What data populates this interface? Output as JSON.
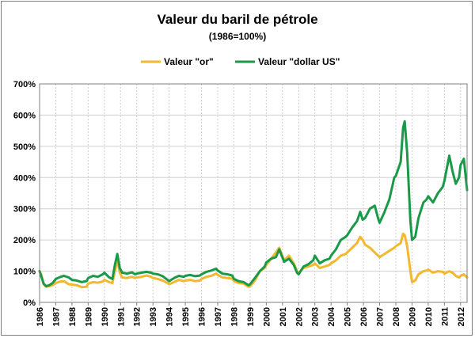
{
  "chart_data": {
    "type": "line",
    "title": "Valeur du baril de pétrole",
    "subtitle": "(1986=100%)",
    "xlabel": "",
    "ylabel": "",
    "xlim": [
      1986,
      2012.4
    ],
    "ylim": [
      0,
      700
    ],
    "y_unit": "%",
    "yticks": [
      "0%",
      "100%",
      "200%",
      "300%",
      "400%",
      "500%",
      "600%",
      "700%"
    ],
    "xticks": [
      "1986",
      "1987",
      "1988",
      "1989",
      "1990",
      "1991",
      "1992",
      "1993",
      "1994",
      "1995",
      "1996",
      "1997",
      "1998",
      "1999",
      "2000",
      "2001",
      "2002",
      "2003",
      "2004",
      "2005",
      "2006",
      "2007",
      "2008",
      "2009",
      "2010",
      "2011",
      "2012"
    ],
    "grid": true,
    "legend": "top",
    "series": [
      {
        "name": "Valeur \"or\"",
        "color": "#f2b92e",
        "points": [
          [
            1986.0,
            100
          ],
          [
            1986.1,
            90
          ],
          [
            1986.25,
            58
          ],
          [
            1986.4,
            50
          ],
          [
            1986.6,
            52
          ],
          [
            1986.8,
            55
          ],
          [
            1987.0,
            62
          ],
          [
            1987.3,
            67
          ],
          [
            1987.5,
            68
          ],
          [
            1987.8,
            58
          ],
          [
            1988.0,
            57
          ],
          [
            1988.3,
            55
          ],
          [
            1988.6,
            49
          ],
          [
            1988.9,
            50
          ],
          [
            1989.0,
            60
          ],
          [
            1989.3,
            65
          ],
          [
            1989.6,
            63
          ],
          [
            1989.9,
            67
          ],
          [
            1990.0,
            72
          ],
          [
            1990.3,
            65
          ],
          [
            1990.5,
            62
          ],
          [
            1990.65,
            100
          ],
          [
            1990.8,
            135
          ],
          [
            1990.95,
            95
          ],
          [
            1991.1,
            80
          ],
          [
            1991.4,
            78
          ],
          [
            1991.7,
            82
          ],
          [
            1991.9,
            78
          ],
          [
            1992.0,
            80
          ],
          [
            1992.3,
            82
          ],
          [
            1992.6,
            86
          ],
          [
            1992.9,
            82
          ],
          [
            1993.0,
            78
          ],
          [
            1993.3,
            75
          ],
          [
            1993.6,
            70
          ],
          [
            1993.9,
            62
          ],
          [
            1994.0,
            58
          ],
          [
            1994.3,
            65
          ],
          [
            1994.6,
            72
          ],
          [
            1994.9,
            68
          ],
          [
            1995.0,
            70
          ],
          [
            1995.3,
            72
          ],
          [
            1995.6,
            68
          ],
          [
            1995.9,
            70
          ],
          [
            1996.0,
            75
          ],
          [
            1996.3,
            82
          ],
          [
            1996.6,
            85
          ],
          [
            1996.9,
            92
          ],
          [
            1997.0,
            88
          ],
          [
            1997.3,
            80
          ],
          [
            1997.6,
            78
          ],
          [
            1997.9,
            76
          ],
          [
            1998.0,
            68
          ],
          [
            1998.3,
            62
          ],
          [
            1998.6,
            60
          ],
          [
            1998.9,
            50
          ],
          [
            1999.0,
            52
          ],
          [
            1999.3,
            70
          ],
          [
            1999.6,
            100
          ],
          [
            1999.9,
            110
          ],
          [
            2000.0,
            120
          ],
          [
            2000.3,
            140
          ],
          [
            2000.6,
            160
          ],
          [
            2000.8,
            175
          ],
          [
            2000.95,
            155
          ],
          [
            2001.1,
            135
          ],
          [
            2001.4,
            150
          ],
          [
            2001.7,
            125
          ],
          [
            2001.9,
            100
          ],
          [
            2002.0,
            95
          ],
          [
            2002.3,
            110
          ],
          [
            2002.6,
            115
          ],
          [
            2002.9,
            120
          ],
          [
            2003.0,
            125
          ],
          [
            2003.3,
            110
          ],
          [
            2003.6,
            115
          ],
          [
            2003.9,
            120
          ],
          [
            2004.0,
            125
          ],
          [
            2004.3,
            135
          ],
          [
            2004.6,
            150
          ],
          [
            2004.9,
            155
          ],
          [
            2005.0,
            160
          ],
          [
            2005.3,
            175
          ],
          [
            2005.6,
            190
          ],
          [
            2005.8,
            210
          ],
          [
            2005.95,
            200
          ],
          [
            2006.1,
            185
          ],
          [
            2006.4,
            175
          ],
          [
            2006.7,
            160
          ],
          [
            2006.9,
            150
          ],
          [
            2007.0,
            145
          ],
          [
            2007.3,
            155
          ],
          [
            2007.6,
            165
          ],
          [
            2007.9,
            175
          ],
          [
            2008.0,
            180
          ],
          [
            2008.3,
            190
          ],
          [
            2008.45,
            220
          ],
          [
            2008.55,
            215
          ],
          [
            2008.7,
            180
          ],
          [
            2008.9,
            100
          ],
          [
            2009.0,
            65
          ],
          [
            2009.2,
            70
          ],
          [
            2009.4,
            90
          ],
          [
            2009.7,
            100
          ],
          [
            2009.9,
            102
          ],
          [
            2010.0,
            105
          ],
          [
            2010.3,
            95
          ],
          [
            2010.6,
            100
          ],
          [
            2010.9,
            98
          ],
          [
            2011.0,
            92
          ],
          [
            2011.3,
            100
          ],
          [
            2011.5,
            95
          ],
          [
            2011.7,
            85
          ],
          [
            2011.9,
            80
          ],
          [
            2012.0,
            85
          ],
          [
            2012.2,
            90
          ],
          [
            2012.4,
            80
          ]
        ]
      },
      {
        "name": "Valeur \"dollar US\"",
        "color": "#1a9a48",
        "points": [
          [
            1986.0,
            100
          ],
          [
            1986.1,
            85
          ],
          [
            1986.25,
            60
          ],
          [
            1986.4,
            52
          ],
          [
            1986.6,
            55
          ],
          [
            1986.8,
            62
          ],
          [
            1987.0,
            75
          ],
          [
            1987.3,
            82
          ],
          [
            1987.5,
            85
          ],
          [
            1987.8,
            80
          ],
          [
            1988.0,
            72
          ],
          [
            1988.3,
            70
          ],
          [
            1988.6,
            65
          ],
          [
            1988.9,
            68
          ],
          [
            1989.0,
            78
          ],
          [
            1989.3,
            85
          ],
          [
            1989.6,
            82
          ],
          [
            1989.9,
            90
          ],
          [
            1990.0,
            95
          ],
          [
            1990.3,
            80
          ],
          [
            1990.5,
            75
          ],
          [
            1990.65,
            120
          ],
          [
            1990.8,
            155
          ],
          [
            1990.95,
            110
          ],
          [
            1991.1,
            95
          ],
          [
            1991.4,
            92
          ],
          [
            1991.7,
            96
          ],
          [
            1991.9,
            90
          ],
          [
            1992.0,
            92
          ],
          [
            1992.3,
            95
          ],
          [
            1992.6,
            98
          ],
          [
            1992.9,
            95
          ],
          [
            1993.0,
            92
          ],
          [
            1993.3,
            90
          ],
          [
            1993.6,
            84
          ],
          [
            1993.9,
            72
          ],
          [
            1994.0,
            68
          ],
          [
            1994.3,
            78
          ],
          [
            1994.6,
            85
          ],
          [
            1994.9,
            82
          ],
          [
            1995.0,
            85
          ],
          [
            1995.3,
            88
          ],
          [
            1995.6,
            84
          ],
          [
            1995.9,
            86
          ],
          [
            1996.0,
            90
          ],
          [
            1996.3,
            98
          ],
          [
            1996.6,
            102
          ],
          [
            1996.9,
            108
          ],
          [
            1997.0,
            102
          ],
          [
            1997.3,
            92
          ],
          [
            1997.6,
            90
          ],
          [
            1997.9,
            86
          ],
          [
            1998.0,
            75
          ],
          [
            1998.3,
            68
          ],
          [
            1998.6,
            65
          ],
          [
            1998.9,
            55
          ],
          [
            1999.0,
            58
          ],
          [
            1999.3,
            78
          ],
          [
            1999.6,
            100
          ],
          [
            1999.9,
            115
          ],
          [
            2000.0,
            128
          ],
          [
            2000.3,
            140
          ],
          [
            2000.6,
            145
          ],
          [
            2000.8,
            170
          ],
          [
            2000.95,
            150
          ],
          [
            2001.1,
            130
          ],
          [
            2001.4,
            140
          ],
          [
            2001.7,
            120
          ],
          [
            2001.9,
            95
          ],
          [
            2002.0,
            90
          ],
          [
            2002.3,
            115
          ],
          [
            2002.6,
            122
          ],
          [
            2002.9,
            135
          ],
          [
            2003.0,
            150
          ],
          [
            2003.3,
            125
          ],
          [
            2003.6,
            135
          ],
          [
            2003.9,
            140
          ],
          [
            2004.0,
            150
          ],
          [
            2004.3,
            170
          ],
          [
            2004.6,
            200
          ],
          [
            2004.9,
            210
          ],
          [
            2005.0,
            215
          ],
          [
            2005.3,
            240
          ],
          [
            2005.6,
            260
          ],
          [
            2005.8,
            290
          ],
          [
            2005.95,
            265
          ],
          [
            2006.1,
            270
          ],
          [
            2006.4,
            300
          ],
          [
            2006.7,
            310
          ],
          [
            2006.9,
            270
          ],
          [
            2007.0,
            255
          ],
          [
            2007.3,
            290
          ],
          [
            2007.6,
            330
          ],
          [
            2007.9,
            400
          ],
          [
            2008.0,
            405
          ],
          [
            2008.3,
            450
          ],
          [
            2008.45,
            560
          ],
          [
            2008.55,
            580
          ],
          [
            2008.7,
            480
          ],
          [
            2008.9,
            260
          ],
          [
            2009.0,
            200
          ],
          [
            2009.2,
            210
          ],
          [
            2009.4,
            270
          ],
          [
            2009.7,
            320
          ],
          [
            2009.9,
            330
          ],
          [
            2010.0,
            340
          ],
          [
            2010.3,
            320
          ],
          [
            2010.6,
            350
          ],
          [
            2010.9,
            370
          ],
          [
            2011.0,
            390
          ],
          [
            2011.3,
            470
          ],
          [
            2011.5,
            420
          ],
          [
            2011.7,
            380
          ],
          [
            2011.9,
            400
          ],
          [
            2012.0,
            440
          ],
          [
            2012.2,
            460
          ],
          [
            2012.4,
            360
          ]
        ]
      }
    ]
  }
}
